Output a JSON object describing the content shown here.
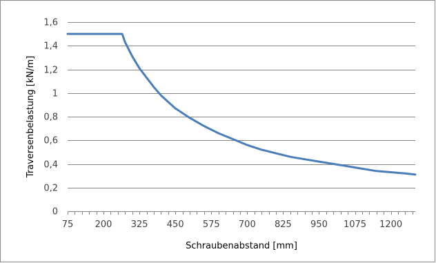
{
  "chart_data": {
    "type": "line",
    "title": "",
    "xlabel": "Schraubenabstand [mm]",
    "ylabel": "Traversenbelastung [kN/m]",
    "xlim": [
      75,
      1285
    ],
    "ylim": [
      0,
      1.6
    ],
    "x_ticks": [
      75,
      200,
      325,
      450,
      575,
      700,
      825,
      950,
      1075,
      1200
    ],
    "x_tick_labels": [
      "75",
      "200",
      "325",
      "450",
      "575",
      "700",
      "825",
      "950",
      "1075",
      "1200"
    ],
    "y_ticks": [
      0,
      0.2,
      0.4,
      0.6,
      0.8,
      1.0,
      1.2,
      1.4,
      1.6
    ],
    "y_tick_labels": [
      "0",
      "0,2",
      "0,4",
      "0,6",
      "0,8",
      "1",
      "1,2",
      "1,4",
      "1,6"
    ],
    "grid": "horizontal",
    "legend": "none",
    "series_color": "#4a7ebb",
    "gridline_color": "#868686",
    "series": [
      {
        "x": [
          75,
          100,
          150,
          200,
          250,
          265,
          275,
          300,
          325,
          350,
          375,
          400,
          450,
          500,
          550,
          600,
          650,
          700,
          750,
          800,
          850,
          900,
          950,
          1000,
          1050,
          1100,
          1150,
          1200,
          1250,
          1285
        ],
        "y": [
          1.5,
          1.5,
          1.5,
          1.5,
          1.5,
          1.5,
          1.43,
          1.31,
          1.21,
          1.13,
          1.05,
          0.98,
          0.87,
          0.79,
          0.72,
          0.66,
          0.61,
          0.56,
          0.52,
          0.49,
          0.46,
          0.44,
          0.42,
          0.4,
          0.38,
          0.36,
          0.34,
          0.33,
          0.32,
          0.31
        ]
      }
    ]
  }
}
